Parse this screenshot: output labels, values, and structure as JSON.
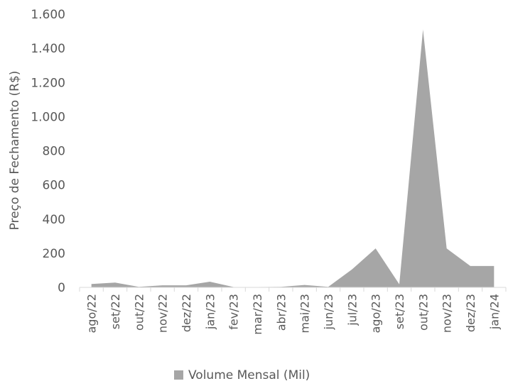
{
  "chart_data": {
    "type": "area",
    "title": "",
    "xlabel": "",
    "ylabel": "Preço de Fechamento (R$)",
    "ylim": [
      0,
      1600
    ],
    "y_ticks": [
      0,
      200,
      400,
      600,
      800,
      1000,
      1200,
      1400,
      1600
    ],
    "y_tick_labels": [
      "0",
      "200",
      "400",
      "600",
      "800",
      "1.000",
      "1.200",
      "1.400",
      "1.600"
    ],
    "categories": [
      "ago/22",
      "set/22",
      "out/22",
      "nov/22",
      "dez/22",
      "jan/23",
      "fev/23",
      "mar/23",
      "abr/23",
      "mai/23",
      "jun/23",
      "jul/23",
      "ago/23",
      "set/23",
      "out/23",
      "nov/23",
      "dez/23",
      "jan/24"
    ],
    "series": [
      {
        "name": "Volume Mensal (Mil)",
        "color": "#a6a6a6",
        "values": [
          20,
          28,
          3,
          12,
          12,
          33,
          2,
          2,
          3,
          14,
          3,
          105,
          228,
          18,
          1510,
          228,
          125,
          125
        ]
      }
    ],
    "grid": false,
    "legend_position": "bottom"
  }
}
